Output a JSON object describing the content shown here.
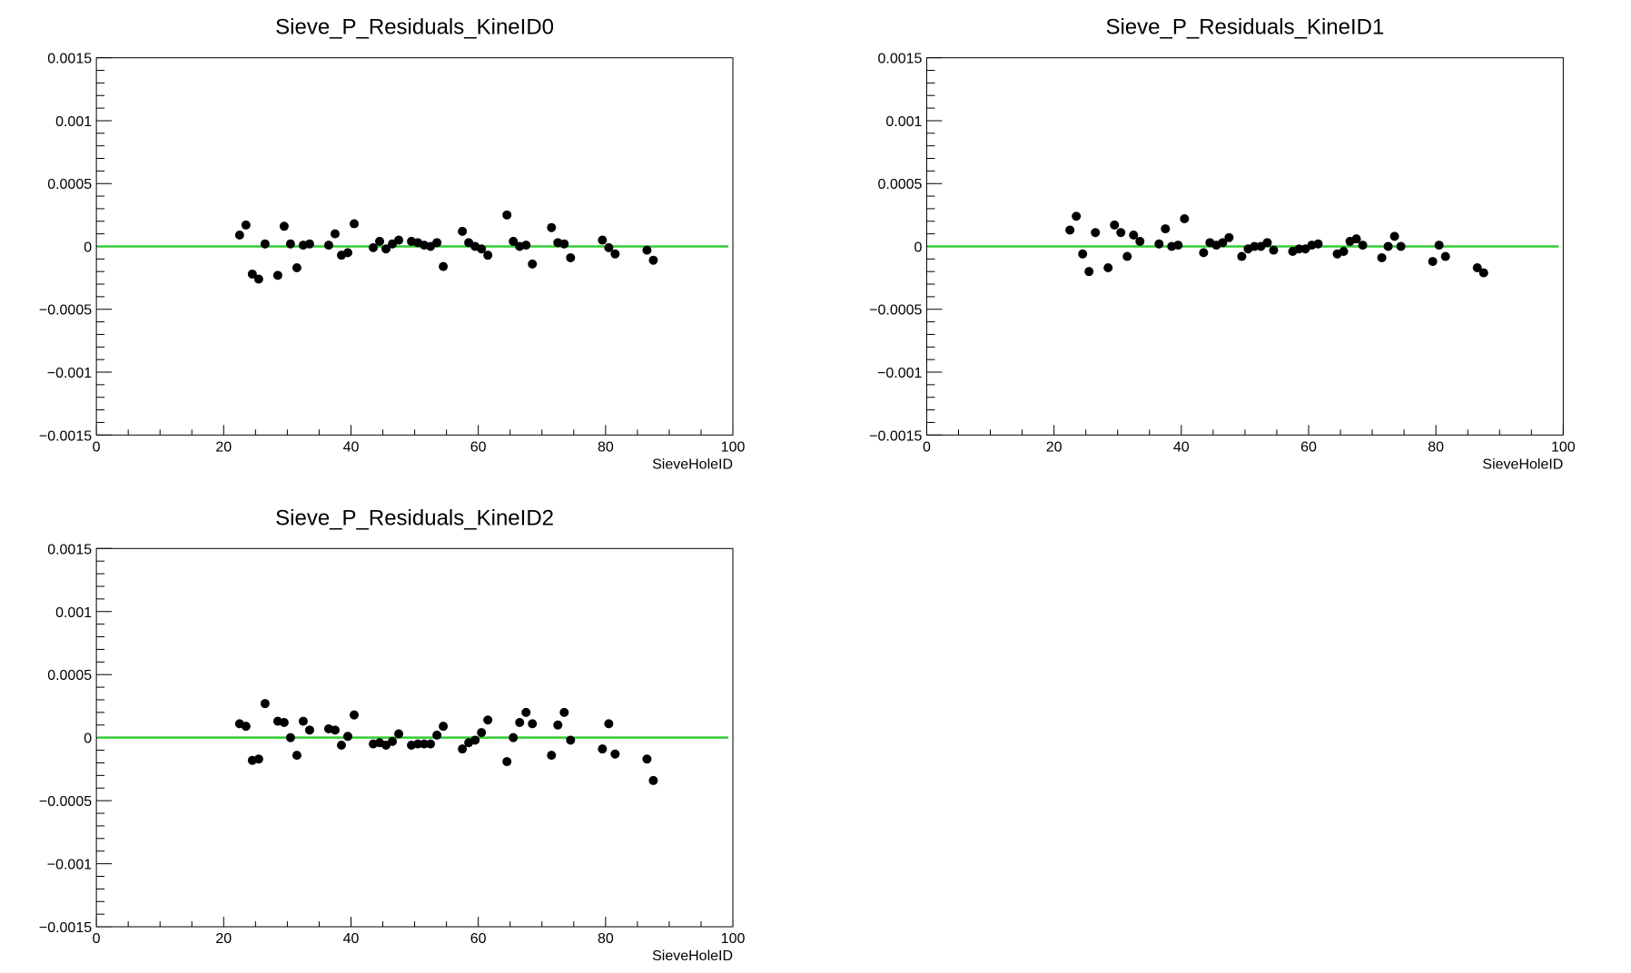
{
  "chart_data": [
    {
      "type": "scatter",
      "title": "Sieve_P_Residuals_KineID0",
      "xlabel": "SieveHoleID",
      "ylabel": "",
      "xlim": [
        0,
        100
      ],
      "ylim": [
        -0.0015,
        0.0015
      ],
      "x_ticks": [
        "0",
        "20",
        "40",
        "60",
        "80",
        "100"
      ],
      "y_ticks": [
        "−0.0015",
        "−0.001",
        "−0.0005",
        "0",
        "0.0005",
        "0.001",
        "0.0015"
      ],
      "reference_line": {
        "y": 0,
        "color": "#33cc33"
      },
      "marker_color": "#000000",
      "points": [
        [
          22.5,
          9e-05
        ],
        [
          23.5,
          0.00017
        ],
        [
          24.5,
          -0.00022
        ],
        [
          25.5,
          -0.00026
        ],
        [
          26.5,
          2e-05
        ],
        [
          28.5,
          -0.00023
        ],
        [
          29.5,
          0.00016
        ],
        [
          30.5,
          2e-05
        ],
        [
          31.5,
          -0.00017
        ],
        [
          32.5,
          1e-05
        ],
        [
          33.5,
          2e-05
        ],
        [
          36.5,
          1e-05
        ],
        [
          37.5,
          0.0001
        ],
        [
          38.5,
          -7e-05
        ],
        [
          39.5,
          -5e-05
        ],
        [
          40.5,
          0.00018
        ],
        [
          43.5,
          -1e-05
        ],
        [
          44.5,
          4e-05
        ],
        [
          45.5,
          -2e-05
        ],
        [
          46.5,
          2e-05
        ],
        [
          47.5,
          5e-05
        ],
        [
          49.5,
          4e-05
        ],
        [
          50.5,
          3e-05
        ],
        [
          51.5,
          1e-05
        ],
        [
          52.5,
          0.0
        ],
        [
          53.5,
          3e-05
        ],
        [
          54.5,
          -0.00016
        ],
        [
          57.5,
          0.00012
        ],
        [
          58.5,
          3e-05
        ],
        [
          59.5,
          0.0
        ],
        [
          60.5,
          -2e-05
        ],
        [
          61.5,
          -7e-05
        ],
        [
          64.5,
          0.00025
        ],
        [
          65.5,
          4e-05
        ],
        [
          66.5,
          0.0
        ],
        [
          67.5,
          1e-05
        ],
        [
          68.5,
          -0.00014
        ],
        [
          71.5,
          0.00015
        ],
        [
          72.5,
          3e-05
        ],
        [
          73.5,
          2e-05
        ],
        [
          74.5,
          -9e-05
        ],
        [
          79.5,
          5e-05
        ],
        [
          80.5,
          -1e-05
        ],
        [
          81.5,
          -6e-05
        ],
        [
          86.5,
          -3e-05
        ],
        [
          87.5,
          -0.00011
        ]
      ]
    },
    {
      "type": "scatter",
      "title": "Sieve_P_Residuals_KineID1",
      "xlabel": "SieveHoleID",
      "ylabel": "",
      "xlim": [
        0,
        100
      ],
      "ylim": [
        -0.0015,
        0.0015
      ],
      "x_ticks": [
        "0",
        "20",
        "40",
        "60",
        "80",
        "100"
      ],
      "y_ticks": [
        "−0.0015",
        "−0.001",
        "−0.0005",
        "0",
        "0.0005",
        "0.001",
        "0.0015"
      ],
      "reference_line": {
        "y": 0,
        "color": "#33cc33"
      },
      "marker_color": "#000000",
      "points": [
        [
          22.5,
          0.00013
        ],
        [
          23.5,
          0.00024
        ],
        [
          24.5,
          -6e-05
        ],
        [
          25.5,
          -0.0002
        ],
        [
          26.5,
          0.00011
        ],
        [
          28.5,
          -0.00017
        ],
        [
          29.5,
          0.00017
        ],
        [
          30.5,
          0.00011
        ],
        [
          31.5,
          -8e-05
        ],
        [
          32.5,
          9e-05
        ],
        [
          33.5,
          4e-05
        ],
        [
          36.5,
          2e-05
        ],
        [
          37.5,
          0.00014
        ],
        [
          38.5,
          0.0
        ],
        [
          39.5,
          1e-05
        ],
        [
          40.5,
          0.00022
        ],
        [
          43.5,
          -5e-05
        ],
        [
          44.5,
          3e-05
        ],
        [
          45.5,
          1e-05
        ],
        [
          46.5,
          3e-05
        ],
        [
          47.5,
          7e-05
        ],
        [
          49.5,
          -8e-05
        ],
        [
          50.5,
          -2e-05
        ],
        [
          51.5,
          0.0
        ],
        [
          52.5,
          0.0
        ],
        [
          53.5,
          3e-05
        ],
        [
          54.5,
          -3e-05
        ],
        [
          57.5,
          -4e-05
        ],
        [
          58.5,
          -2e-05
        ],
        [
          59.5,
          -2e-05
        ],
        [
          60.5,
          1e-05
        ],
        [
          61.5,
          2e-05
        ],
        [
          64.5,
          -6e-05
        ],
        [
          65.5,
          -4e-05
        ],
        [
          66.5,
          4e-05
        ],
        [
          67.5,
          6e-05
        ],
        [
          68.5,
          1e-05
        ],
        [
          71.5,
          -9e-05
        ],
        [
          72.5,
          0.0
        ],
        [
          73.5,
          8e-05
        ],
        [
          74.5,
          0.0
        ],
        [
          79.5,
          -0.00012
        ],
        [
          80.5,
          1e-05
        ],
        [
          81.5,
          -8e-05
        ],
        [
          86.5,
          -0.00017
        ],
        [
          87.5,
          -0.00021
        ]
      ]
    },
    {
      "type": "scatter",
      "title": "Sieve_P_Residuals_KineID2",
      "xlabel": "SieveHoleID",
      "ylabel": "",
      "xlim": [
        0,
        100
      ],
      "ylim": [
        -0.0015,
        0.0015
      ],
      "x_ticks": [
        "0",
        "20",
        "40",
        "60",
        "80",
        "100"
      ],
      "y_ticks": [
        "−0.0015",
        "−0.001",
        "−0.0005",
        "0",
        "0.0005",
        "0.001",
        "0.0015"
      ],
      "reference_line": {
        "y": 0,
        "color": "#33cc33"
      },
      "marker_color": "#000000",
      "points": [
        [
          22.5,
          0.00011
        ],
        [
          23.5,
          9e-05
        ],
        [
          24.5,
          -0.00018
        ],
        [
          25.5,
          -0.00017
        ],
        [
          26.5,
          0.00027
        ],
        [
          28.5,
          0.00013
        ],
        [
          29.5,
          0.00012
        ],
        [
          30.5,
          0.0
        ],
        [
          31.5,
          -0.00014
        ],
        [
          32.5,
          0.00013
        ],
        [
          33.5,
          6e-05
        ],
        [
          36.5,
          7e-05
        ],
        [
          37.5,
          6e-05
        ],
        [
          38.5,
          -6e-05
        ],
        [
          39.5,
          1e-05
        ],
        [
          40.5,
          0.00018
        ],
        [
          43.5,
          -5e-05
        ],
        [
          44.5,
          -4e-05
        ],
        [
          45.5,
          -6e-05
        ],
        [
          46.5,
          -3e-05
        ],
        [
          47.5,
          3e-05
        ],
        [
          49.5,
          -6e-05
        ],
        [
          50.5,
          -5e-05
        ],
        [
          51.5,
          -5e-05
        ],
        [
          52.5,
          -5e-05
        ],
        [
          53.5,
          2e-05
        ],
        [
          54.5,
          9e-05
        ],
        [
          57.5,
          -9e-05
        ],
        [
          58.5,
          -4e-05
        ],
        [
          59.5,
          -2e-05
        ],
        [
          60.5,
          4e-05
        ],
        [
          61.5,
          0.00014
        ],
        [
          64.5,
          -0.00019
        ],
        [
          65.5,
          0.0
        ],
        [
          66.5,
          0.00012
        ],
        [
          67.5,
          0.0002
        ],
        [
          68.5,
          0.00011
        ],
        [
          71.5,
          -0.00014
        ],
        [
          72.5,
          0.0001
        ],
        [
          73.5,
          0.0002
        ],
        [
          74.5,
          -2e-05
        ],
        [
          79.5,
          -9e-05
        ],
        [
          80.5,
          0.00011
        ],
        [
          81.5,
          -0.00013
        ],
        [
          86.5,
          -0.00017
        ],
        [
          87.5,
          -0.00034
        ]
      ]
    }
  ]
}
